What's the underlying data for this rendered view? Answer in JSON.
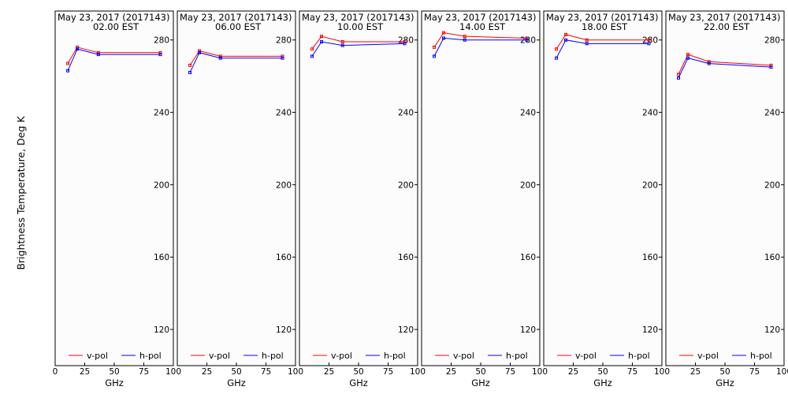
{
  "chart_data": {
    "type": "line",
    "ylabel": "Brightness Temperature, Deg K",
    "ylim": [
      100,
      296
    ],
    "yticks": [
      120,
      160,
      200,
      240,
      280
    ],
    "xlabel": "GHz",
    "xlim": [
      0,
      100
    ],
    "xticks": [
      0,
      25,
      50,
      75,
      100
    ],
    "x": [
      10.7,
      18.7,
      36.5,
      89.0
    ],
    "legend_position": "bottom",
    "colors": {
      "v": "#ff0000",
      "h": "#0000ff"
    },
    "panels": [
      {
        "title": "May 23, 2017 (2017143)",
        "subtitle": "02.00 EST",
        "series": [
          {
            "name": "v-pol",
            "values": [
              267,
              276,
              273,
              273
            ]
          },
          {
            "name": "h-pol",
            "values": [
              263,
              275,
              272,
              272
            ]
          }
        ]
      },
      {
        "title": "May 23, 2017 (2017143)",
        "subtitle": "06.00 EST",
        "series": [
          {
            "name": "v-pol",
            "values": [
              266,
              274,
              271,
              271
            ]
          },
          {
            "name": "h-pol",
            "values": [
              262,
              273,
              270,
              270
            ]
          }
        ]
      },
      {
        "title": "May 23, 2017 (2017143)",
        "subtitle": "10.00 EST",
        "series": [
          {
            "name": "v-pol",
            "values": [
              275,
              282,
              279,
              279
            ]
          },
          {
            "name": "h-pol",
            "values": [
              271,
              279,
              277,
              278
            ]
          }
        ]
      },
      {
        "title": "May 23, 2017 (2017143)",
        "subtitle": "14.00 EST",
        "series": [
          {
            "name": "v-pol",
            "values": [
              276,
              284,
              282,
              281
            ]
          },
          {
            "name": "h-pol",
            "values": [
              271,
              281,
              280,
              280
            ]
          }
        ]
      },
      {
        "title": "May 23, 2017 (2017143)",
        "subtitle": "18.00 EST",
        "series": [
          {
            "name": "v-pol",
            "values": [
              275,
              283,
              280,
              280
            ]
          },
          {
            "name": "h-pol",
            "values": [
              270,
              280,
              278,
              278
            ]
          }
        ]
      },
      {
        "title": "May 23, 2017 (2017143)",
        "subtitle": "22.00 EST",
        "series": [
          {
            "name": "v-pol",
            "values": [
              261,
              272,
              268,
              266
            ]
          },
          {
            "name": "h-pol",
            "values": [
              259,
              270,
              267,
              265
            ]
          }
        ]
      }
    ]
  }
}
